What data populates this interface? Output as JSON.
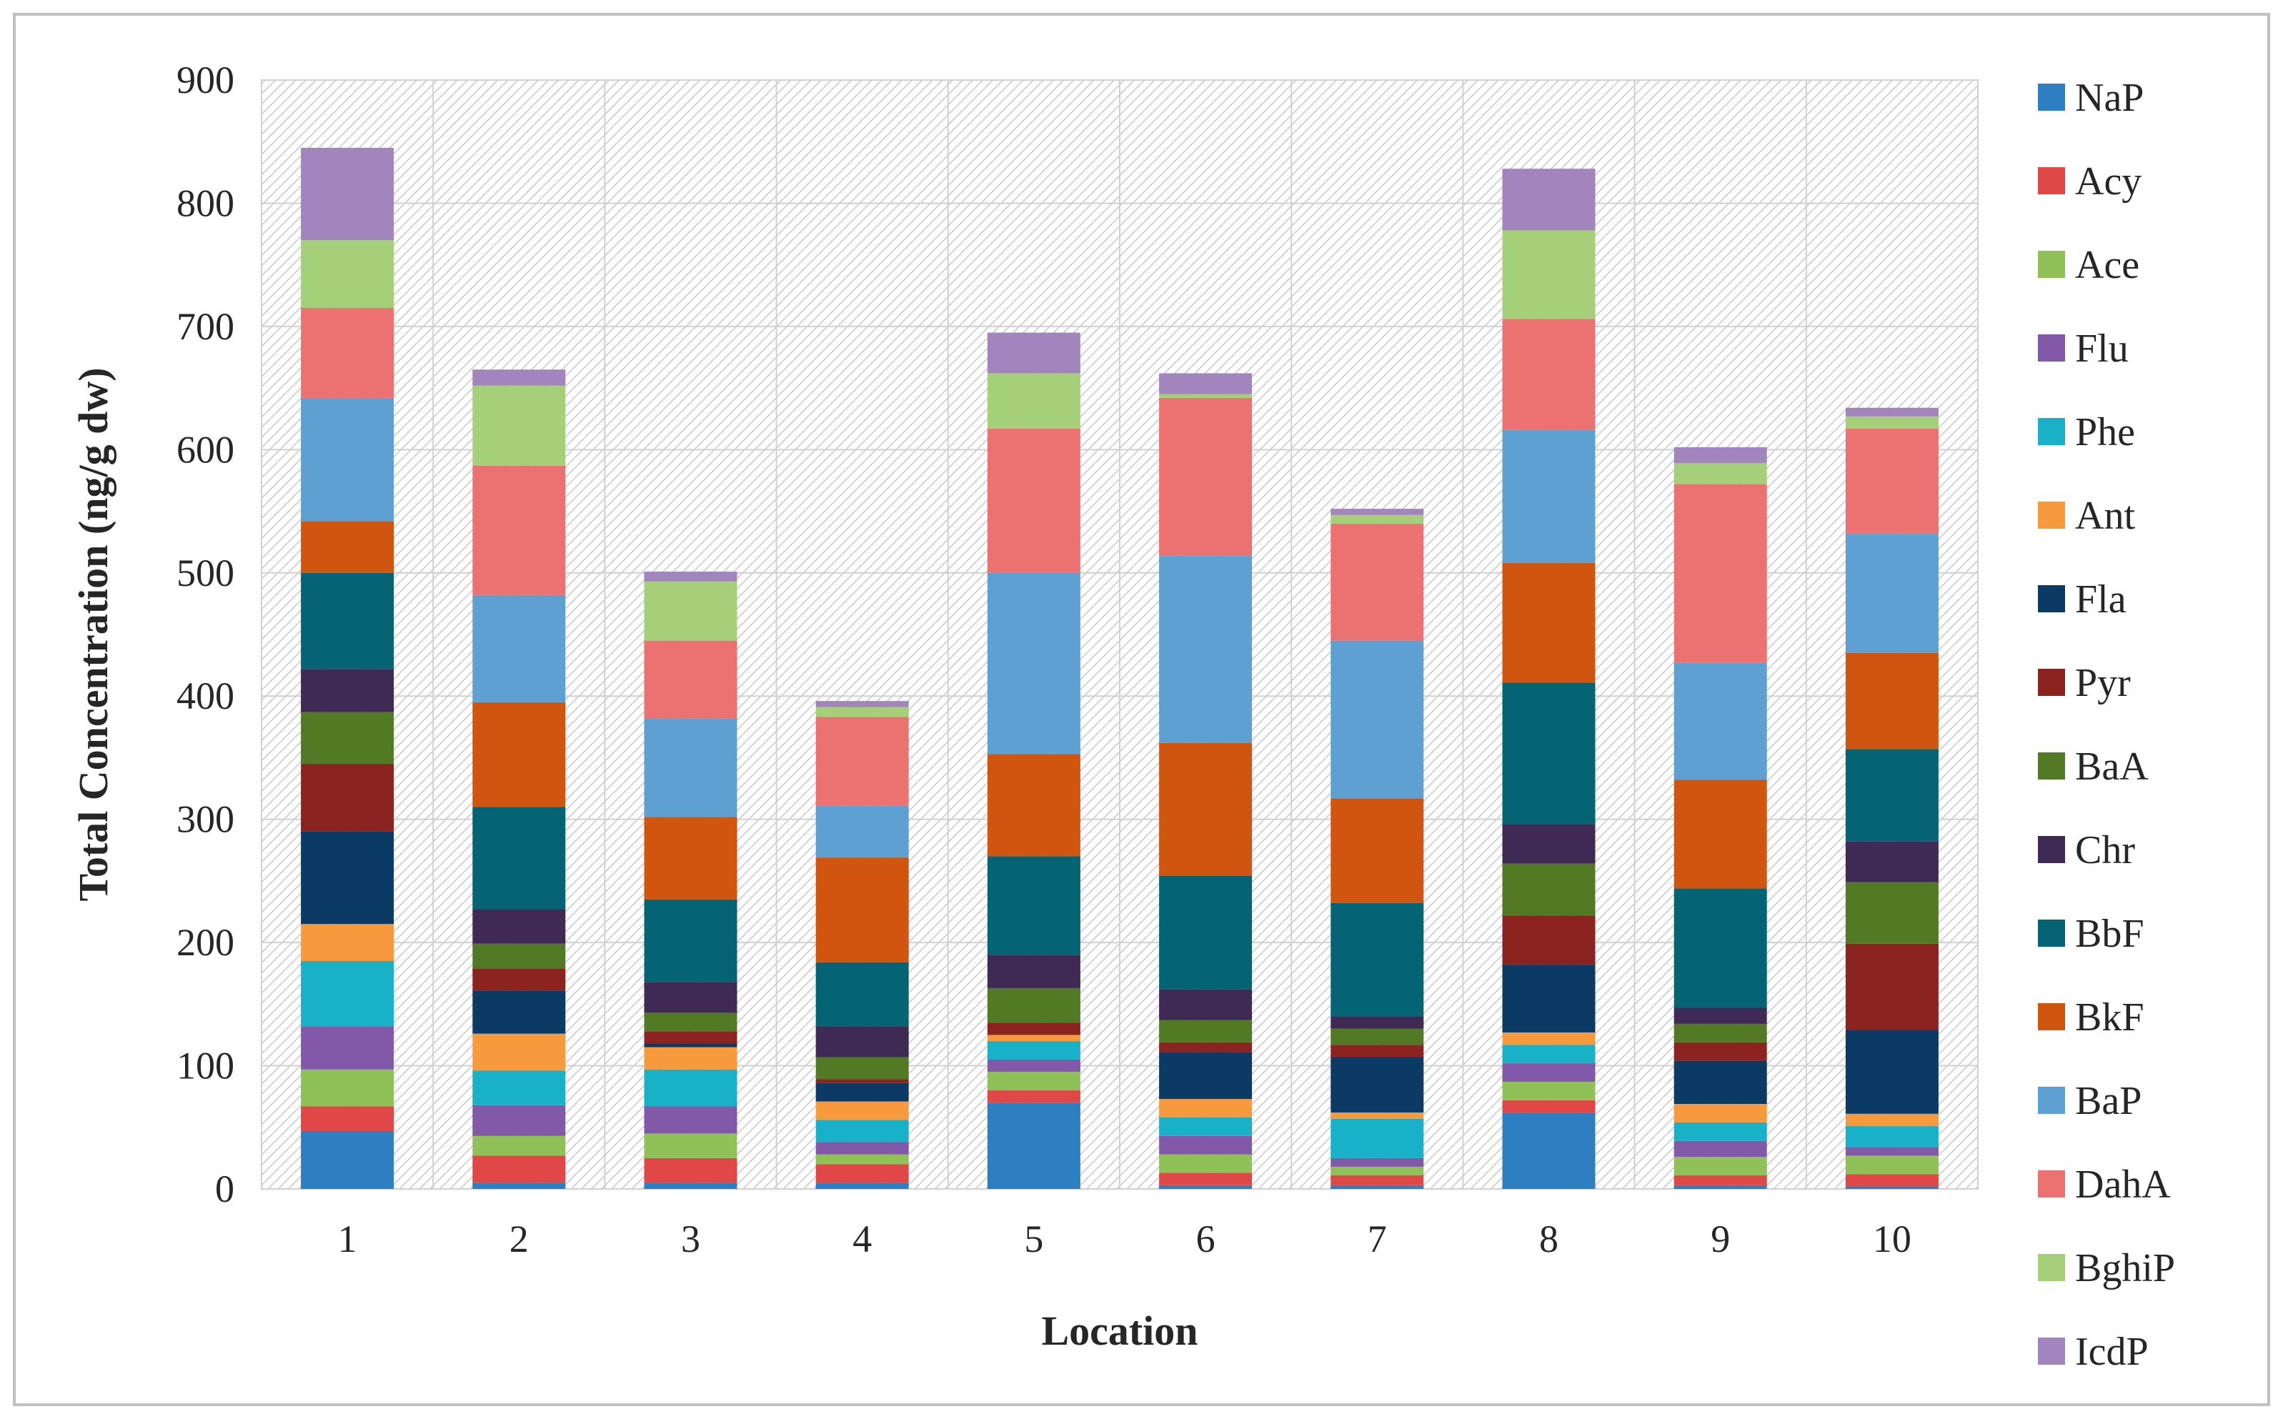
{
  "chart_data": {
    "type": "bar",
    "stacked": true,
    "title": "",
    "xlabel": "Location",
    "ylabel": "Total Concentration (ng/g dw)",
    "ylim": [
      0,
      900
    ],
    "yticks": [
      0,
      100,
      200,
      300,
      400,
      500,
      600,
      700,
      800,
      900
    ],
    "grid": true,
    "legend_position": "right",
    "categories": [
      "1",
      "2",
      "3",
      "4",
      "5",
      "6",
      "7",
      "8",
      "9",
      "10"
    ],
    "series": [
      {
        "name": "NaP",
        "color": "#2e7fc1",
        "values": [
          47,
          5,
          5,
          5,
          70,
          3,
          3,
          62,
          3,
          2
        ]
      },
      {
        "name": "Acy",
        "color": "#e04848",
        "values": [
          20,
          22,
          20,
          15,
          10,
          10,
          8,
          10,
          8,
          10
        ]
      },
      {
        "name": "Ace",
        "color": "#8fc158",
        "values": [
          30,
          16,
          20,
          8,
          15,
          15,
          7,
          15,
          15,
          15
        ]
      },
      {
        "name": "Flu",
        "color": "#8159a8",
        "values": [
          35,
          25,
          22,
          10,
          10,
          15,
          7,
          15,
          13,
          7
        ]
      },
      {
        "name": "Phe",
        "color": "#19b1c7",
        "values": [
          53,
          28,
          30,
          18,
          15,
          15,
          32,
          15,
          15,
          17
        ]
      },
      {
        "name": "Ant",
        "color": "#f79a3e",
        "values": [
          30,
          30,
          18,
          15,
          5,
          15,
          5,
          10,
          15,
          10
        ]
      },
      {
        "name": "Fla",
        "color": "#0b3a64",
        "values": [
          75,
          35,
          3,
          15,
          0,
          38,
          45,
          55,
          35,
          68
        ]
      },
      {
        "name": "Pyr",
        "color": "#8b2320",
        "values": [
          55,
          18,
          10,
          3,
          10,
          8,
          10,
          40,
          15,
          70
        ]
      },
      {
        "name": "BaA",
        "color": "#527a24",
        "values": [
          42,
          20,
          15,
          18,
          28,
          18,
          13,
          42,
          15,
          50
        ]
      },
      {
        "name": "Chr",
        "color": "#3e2a55",
        "values": [
          35,
          28,
          25,
          25,
          27,
          25,
          10,
          32,
          13,
          33
        ]
      },
      {
        "name": "BbF",
        "color": "#046474",
        "values": [
          78,
          83,
          67,
          52,
          80,
          92,
          92,
          115,
          97,
          75
        ]
      },
      {
        "name": "BkF",
        "color": "#d05610",
        "values": [
          42,
          85,
          67,
          85,
          83,
          108,
          85,
          97,
          88,
          78
        ]
      },
      {
        "name": "BaP",
        "color": "#5fa0d2",
        "values": [
          100,
          87,
          80,
          42,
          147,
          152,
          128,
          108,
          95,
          97
        ]
      },
      {
        "name": "DahA",
        "color": "#ec7272",
        "values": [
          73,
          105,
          63,
          72,
          117,
          128,
          95,
          90,
          145,
          85
        ]
      },
      {
        "name": "BghiP",
        "color": "#a6cf79",
        "values": [
          55,
          65,
          48,
          8,
          45,
          3,
          7,
          72,
          17,
          10
        ]
      },
      {
        "name": "IcdP",
        "color": "#a285bd",
        "values": [
          75,
          13,
          8,
          5,
          33,
          17,
          5,
          50,
          13,
          7
        ]
      }
    ]
  }
}
